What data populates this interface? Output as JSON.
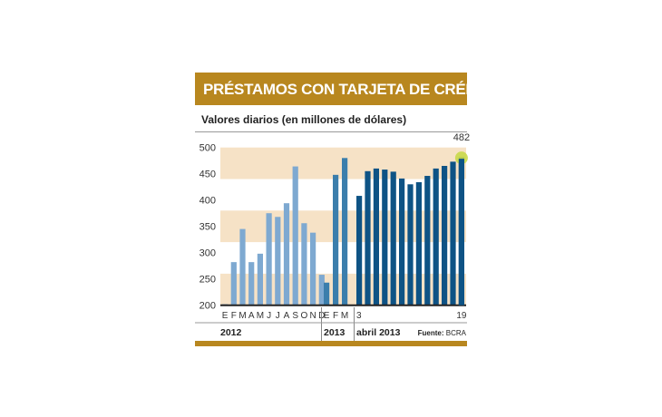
{
  "title": "PRÉSTAMOS CON TARJETA DE CRÉDITO",
  "subtitle": "Valores diarios (en millones de dólares)",
  "source_label": "Fuente:",
  "source": "BCRA",
  "chart_data": {
    "type": "bar",
    "ylim": [
      200,
      500
    ],
    "yticks": [
      200,
      250,
      300,
      350,
      400,
      450,
      500
    ],
    "shaded_bands": [
      [
        200,
        260
      ],
      [
        320,
        380
      ],
      [
        440,
        500
      ]
    ],
    "groups": [
      {
        "label": "2012",
        "color": "#7ea9d1",
        "categories": [
          "E",
          "F",
          "M",
          "A",
          "M",
          "J",
          "J",
          "A",
          "S",
          "O",
          "N",
          "D"
        ],
        "values": [
          202,
          282,
          345,
          282,
          298,
          375,
          368,
          394,
          464,
          356,
          338,
          258
        ]
      },
      {
        "label": "2013",
        "color": "#3b7eac",
        "categories": [
          "E",
          "F",
          "M"
        ],
        "values": [
          243,
          448,
          480
        ]
      },
      {
        "label": "abril 2013",
        "color": "#0e5385",
        "categories": [
          "3",
          "",
          "",
          "",
          "",
          "",
          "",
          "",
          "",
          "",
          "",
          "",
          "19"
        ],
        "values": [
          408,
          455,
          460,
          458,
          454,
          441,
          430,
          434,
          446,
          460,
          465,
          473,
          482
        ]
      }
    ],
    "annotation": {
      "label": "482",
      "highlight_color": "#c9d94a"
    },
    "band_color": "#f6e2c6"
  }
}
